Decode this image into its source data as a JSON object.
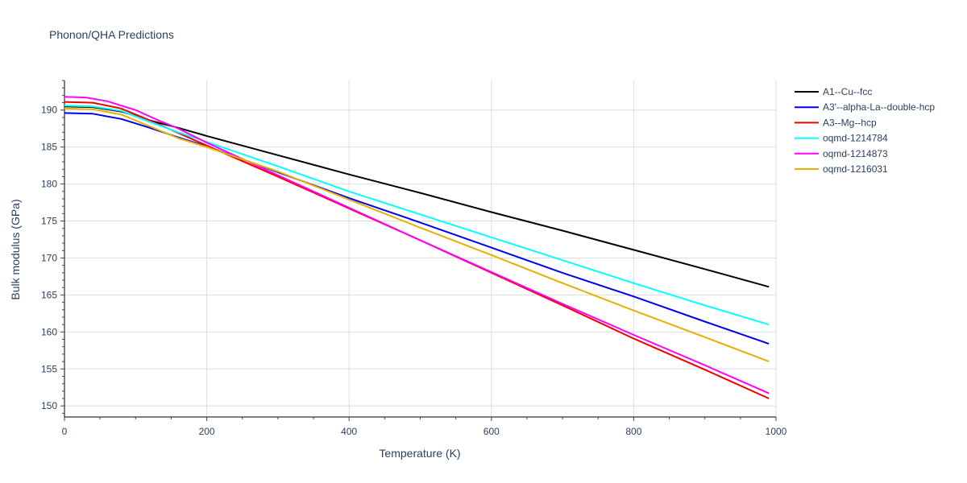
{
  "chart_data": {
    "type": "line",
    "title": "Phonon/QHA Predictions",
    "xlabel": "Temperature (K)",
    "ylabel": "Bulk modulus (GPa)",
    "xlim": [
      0,
      1000
    ],
    "ylim": [
      148.5,
      194
    ],
    "xticks": [
      0,
      200,
      400,
      600,
      800,
      1000
    ],
    "yticks": [
      150,
      155,
      160,
      165,
      170,
      175,
      180,
      185,
      190
    ],
    "grid": true,
    "legend_position": "right",
    "series": [
      {
        "name": "A1--Cu--fcc",
        "color": "#000000",
        "x": [
          0,
          40,
          80,
          120,
          160,
          200,
          300,
          400,
          500,
          600,
          700,
          800,
          900,
          990
        ],
        "y": [
          190.5,
          190.4,
          189.8,
          188.6,
          187.6,
          186.5,
          183.9,
          181.3,
          178.8,
          176.2,
          173.7,
          171.1,
          168.5,
          166.1
        ]
      },
      {
        "name": "A3'--alpha-La--double-hcp",
        "color": "#0000ee",
        "x": [
          0,
          40,
          80,
          120,
          160,
          200,
          300,
          400,
          500,
          600,
          700,
          800,
          900,
          990
        ],
        "y": [
          189.6,
          189.5,
          188.8,
          187.6,
          186.3,
          185.1,
          181.6,
          178.1,
          174.8,
          171.4,
          168.0,
          164.8,
          161.4,
          158.4
        ]
      },
      {
        "name": "A3--Mg--hcp",
        "color": "#ee0000",
        "x": [
          0,
          40,
          80,
          120,
          160,
          200,
          300,
          400,
          500,
          600,
          700,
          800,
          900,
          990
        ],
        "y": [
          191.1,
          191.0,
          190.2,
          188.6,
          186.9,
          185.2,
          181.0,
          176.7,
          172.4,
          168.0,
          163.6,
          159.1,
          154.9,
          151.0
        ]
      },
      {
        "name": "oqmd-1214784",
        "color": "#00ffff",
        "x": [
          0,
          40,
          80,
          120,
          160,
          200,
          300,
          400,
          500,
          600,
          700,
          800,
          900,
          990
        ],
        "y": [
          190.6,
          190.5,
          189.9,
          188.4,
          187.0,
          185.7,
          182.4,
          179.0,
          175.9,
          172.8,
          169.7,
          166.6,
          163.6,
          161.0
        ]
      },
      {
        "name": "oqmd-1214873",
        "color": "#ff00ff",
        "x": [
          0,
          30,
          60,
          100,
          130,
          160,
          200,
          300,
          400,
          500,
          600,
          700,
          800,
          900,
          990
        ],
        "y": [
          191.8,
          191.7,
          191.2,
          190.0,
          188.7,
          187.5,
          185.6,
          181.2,
          176.8,
          172.4,
          168.1,
          163.8,
          159.6,
          155.5,
          151.7
        ]
      },
      {
        "name": "oqmd-1216031",
        "color": "#e6b000",
        "x": [
          0,
          40,
          80,
          120,
          160,
          200,
          300,
          400,
          500,
          600,
          700,
          800,
          900,
          990
        ],
        "y": [
          190.2,
          190.1,
          189.4,
          187.8,
          186.2,
          185.0,
          181.7,
          177.9,
          174.1,
          170.4,
          166.6,
          162.9,
          159.3,
          156.0
        ]
      }
    ]
  }
}
